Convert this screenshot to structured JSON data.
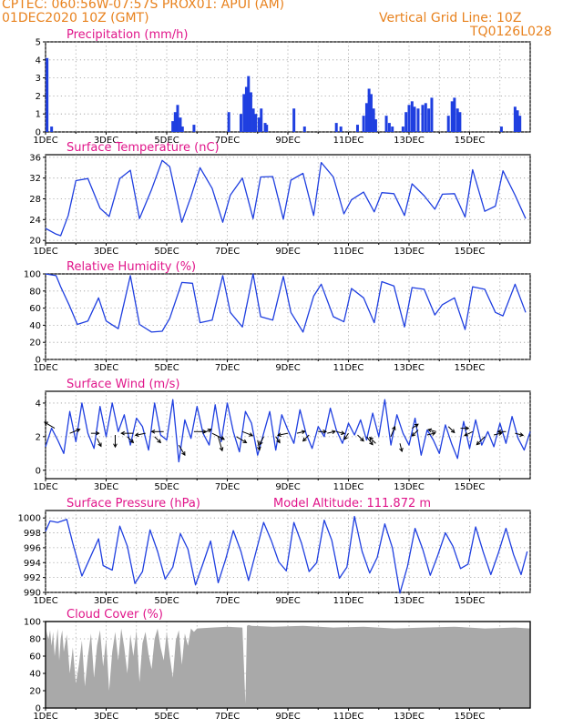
{
  "header": {
    "line1_left": "CPTEC:   060:56W-07:57S   PROX01: APUI (AM)",
    "line2_left": "01DEC2020 10Z (GMT)",
    "line2_right": "Vertical Grid Line: 10Z",
    "line3_right": "TQ0126L028"
  },
  "colors": {
    "header": "#e8821e",
    "title": "#e0158a",
    "series": "#1f3fe0",
    "cloud": "#a9a9a9"
  },
  "chart_data": [
    {
      "id": "precip",
      "type": "bar",
      "title": "Precipitation (mm/h)",
      "ylim": [
        0,
        5
      ],
      "yticks": [
        0,
        1,
        2,
        3,
        4,
        5
      ],
      "xticks": [
        "1DEC",
        "3DEC",
        "5DEC",
        "7DEC",
        "9DEC",
        "11DEC",
        "13DEC",
        "15DEC"
      ],
      "bars": [
        [
          0.05,
          4.1
        ],
        [
          0.2,
          0.3
        ],
        [
          4.2,
          0.6
        ],
        [
          4.28,
          1.1
        ],
        [
          4.36,
          1.5
        ],
        [
          4.45,
          0.8
        ],
        [
          4.52,
          0.3
        ],
        [
          4.9,
          0.4
        ],
        [
          6.05,
          1.1
        ],
        [
          6.45,
          1.0
        ],
        [
          6.55,
          2.1
        ],
        [
          6.63,
          2.5
        ],
        [
          6.7,
          3.1
        ],
        [
          6.78,
          2.2
        ],
        [
          6.86,
          1.3
        ],
        [
          6.94,
          1.0
        ],
        [
          7.05,
          0.8
        ],
        [
          7.12,
          1.3
        ],
        [
          7.25,
          0.5
        ],
        [
          7.3,
          0.4
        ],
        [
          8.2,
          1.3
        ],
        [
          8.55,
          0.3
        ],
        [
          9.6,
          0.5
        ],
        [
          9.75,
          0.3
        ],
        [
          10.3,
          0.4
        ],
        [
          10.5,
          0.9
        ],
        [
          10.6,
          1.6
        ],
        [
          10.68,
          2.4
        ],
        [
          10.75,
          2.1
        ],
        [
          10.83,
          1.3
        ],
        [
          10.9,
          0.7
        ],
        [
          11.25,
          0.9
        ],
        [
          11.35,
          0.5
        ],
        [
          11.45,
          0.3
        ],
        [
          11.8,
          0.3
        ],
        [
          11.9,
          1.1
        ],
        [
          12.0,
          1.5
        ],
        [
          12.1,
          1.7
        ],
        [
          12.18,
          1.4
        ],
        [
          12.3,
          1.3
        ],
        [
          12.45,
          1.5
        ],
        [
          12.55,
          1.6
        ],
        [
          12.65,
          1.3
        ],
        [
          12.75,
          1.9
        ],
        [
          13.3,
          0.9
        ],
        [
          13.42,
          1.7
        ],
        [
          13.5,
          1.9
        ],
        [
          13.6,
          1.3
        ],
        [
          13.68,
          1.1
        ],
        [
          15.05,
          0.3
        ],
        [
          15.5,
          1.4
        ],
        [
          15.58,
          1.2
        ],
        [
          15.66,
          0.9
        ]
      ]
    },
    {
      "id": "temp",
      "type": "line",
      "title": "Surface Temperature (nC)",
      "ylim": [
        19.5,
        36.5
      ],
      "yticks": [
        20,
        24,
        28,
        32,
        36
      ],
      "xticks": [
        "1DEC",
        "3DEC",
        "5DEC",
        "7DEC",
        "9DEC",
        "11DEC",
        "13DEC",
        "15DEC"
      ],
      "x": [
        0.0,
        0.35,
        0.5,
        0.75,
        1.0,
        1.4,
        1.8,
        2.1,
        2.45,
        2.8,
        3.1,
        3.5,
        3.85,
        4.1,
        4.5,
        4.8,
        5.1,
        5.5,
        5.85,
        6.1,
        6.5,
        6.85,
        7.1,
        7.5,
        7.85,
        8.1,
        8.5,
        8.85,
        9.1,
        9.5,
        9.85,
        10.1,
        10.5,
        10.85,
        11.1,
        11.5,
        11.85,
        12.1,
        12.5,
        12.85,
        13.1,
        13.5,
        13.85,
        14.1,
        14.5,
        14.85,
        15.1,
        15.5,
        15.85
      ],
      "y": [
        22.3,
        21.2,
        20.9,
        24.8,
        31.5,
        31.9,
        26.2,
        24.6,
        31.9,
        33.5,
        24.2,
        29.8,
        35.4,
        34.2,
        23.5,
        28.4,
        34.0,
        30.0,
        23.5,
        28.7,
        32.0,
        24.2,
        32.2,
        32.3,
        24.1,
        31.6,
        32.9,
        24.8,
        35.0,
        32.2,
        25.1,
        27.8,
        29.3,
        25.5,
        29.2,
        29.0,
        24.8,
        30.9,
        28.6,
        26.0,
        28.9,
        29.0,
        24.5,
        33.6,
        25.6,
        26.6,
        33.4,
        28.7,
        24.2
      ]
    },
    {
      "id": "rh",
      "type": "line",
      "title": "Relative Humidity (%)",
      "ylim": [
        0,
        100
      ],
      "yticks": [
        0,
        20,
        40,
        60,
        80,
        100
      ],
      "xticks": [
        "1DEC",
        "3DEC",
        "5DEC",
        "7DEC",
        "9DEC",
        "11DEC",
        "13DEC",
        "15DEC"
      ],
      "x": [
        0.0,
        0.35,
        0.5,
        0.8,
        1.05,
        1.4,
        1.75,
        2.0,
        2.4,
        2.8,
        3.1,
        3.5,
        3.85,
        4.1,
        4.5,
        4.85,
        5.1,
        5.5,
        5.85,
        6.1,
        6.5,
        6.85,
        7.1,
        7.5,
        7.85,
        8.1,
        8.5,
        8.85,
        9.1,
        9.5,
        9.85,
        10.1,
        10.5,
        10.85,
        11.1,
        11.5,
        11.85,
        12.1,
        12.5,
        12.85,
        13.1,
        13.5,
        13.85,
        14.1,
        14.5,
        14.85,
        15.1,
        15.5,
        15.85
      ],
      "y": [
        100,
        98,
        85,
        62,
        41,
        45,
        72,
        45,
        36,
        98,
        41,
        32,
        33,
        48,
        90,
        89,
        43,
        46,
        98,
        55,
        38,
        100,
        50,
        46,
        97,
        55,
        32,
        74,
        88,
        50,
        44,
        83,
        72,
        43,
        91,
        86,
        38,
        84,
        82,
        52,
        64,
        72,
        35,
        85,
        82,
        55,
        51,
        88,
        55
      ]
    },
    {
      "id": "wind",
      "type": "line",
      "title": "Surface Wind (m/s)",
      "ylim": [
        -0.5,
        4.7
      ],
      "yticks": [
        0,
        2,
        4
      ],
      "xticks": [
        "1DEC",
        "3DEC",
        "5DEC",
        "7DEC",
        "9DEC",
        "11DEC",
        "13DEC",
        "15DEC"
      ],
      "x": [
        0.0,
        0.2,
        0.4,
        0.6,
        0.8,
        1.0,
        1.2,
        1.4,
        1.6,
        1.8,
        2.0,
        2.2,
        2.4,
        2.6,
        2.8,
        3.0,
        3.2,
        3.4,
        3.6,
        3.8,
        4.0,
        4.2,
        4.4,
        4.6,
        4.8,
        5.0,
        5.2,
        5.4,
        5.6,
        5.8,
        6.0,
        6.2,
        6.4,
        6.6,
        6.8,
        7.0,
        7.2,
        7.4,
        7.6,
        7.8,
        8.0,
        8.2,
        8.4,
        8.6,
        8.8,
        9.0,
        9.2,
        9.4,
        9.6,
        9.8,
        10.0,
        10.2,
        10.4,
        10.6,
        10.8,
        11.0,
        11.2,
        11.4,
        11.6,
        11.8,
        12.0,
        12.2,
        12.4,
        12.6,
        12.8,
        13.0,
        13.2,
        13.4,
        13.6,
        13.8,
        14.0,
        14.2,
        14.4,
        14.6,
        14.8,
        15.0,
        15.2,
        15.4,
        15.6,
        15.8,
        16.0
      ],
      "y": [
        1.4,
        2.5,
        1.8,
        1.0,
        3.5,
        1.7,
        4.0,
        2.2,
        1.3,
        3.8,
        2.0,
        4.0,
        2.3,
        3.3,
        1.5,
        3.1,
        2.6,
        1.2,
        4.0,
        2.1,
        1.8,
        4.2,
        0.5,
        3.0,
        1.9,
        3.8,
        2.2,
        1.5,
        3.9,
        1.7,
        4.0,
        2.3,
        1.1,
        3.5,
        2.8,
        0.9,
        2.2,
        3.5,
        1.2,
        3.3,
        2.4,
        1.6,
        3.6,
        2.2,
        1.3,
        2.6,
        2.0,
        3.7,
        2.4,
        1.6,
        2.8,
        2.1,
        3.0,
        1.8,
        3.4,
        2.0,
        4.2,
        1.5,
        3.3,
        2.2,
        1.5,
        3.1,
        0.9,
        2.4,
        1.8,
        1.0,
        2.7,
        1.6,
        0.7,
        2.9,
        1.3,
        3.0,
        1.5,
        2.3,
        1.4,
        2.8,
        1.6,
        3.2,
        1.9,
        1.2,
        2.3
      ],
      "arrows": [
        [
          0.3,
          2.5,
          -0.5,
          0.3
        ],
        [
          0.8,
          2.2,
          0.5,
          0.2
        ],
        [
          1.5,
          2.2,
          0.4,
          0.0
        ],
        [
          1.7,
          1.9,
          0.2,
          -0.4
        ],
        [
          2.3,
          2.1,
          0.0,
          -0.6
        ],
        [
          2.7,
          2.0,
          0.3,
          -0.3
        ],
        [
          2.9,
          2.2,
          -0.6,
          0.0
        ],
        [
          3.3,
          2.2,
          -0.5,
          -0.1
        ],
        [
          3.6,
          2.0,
          0.3,
          -0.3
        ],
        [
          3.9,
          2.3,
          -0.6,
          0.0
        ],
        [
          4.4,
          1.5,
          0.3,
          -0.5
        ],
        [
          4.9,
          2.3,
          0.6,
          0.0
        ],
        [
          5.2,
          2.2,
          0.4,
          0.2
        ],
        [
          5.5,
          2.2,
          0.6,
          -0.3
        ],
        [
          5.7,
          2.0,
          0.2,
          -0.7
        ],
        [
          6.3,
          2.0,
          0.5,
          -0.3
        ],
        [
          6.5,
          2.3,
          0.5,
          -0.2
        ],
        [
          7.0,
          1.8,
          0.1,
          -0.5
        ],
        [
          7.2,
          2.0,
          -0.2,
          -0.4
        ],
        [
          7.6,
          2.0,
          0.2,
          -0.3
        ],
        [
          8.0,
          2.2,
          -0.5,
          -0.1
        ],
        [
          8.3,
          2.2,
          0.4,
          0.1
        ],
        [
          8.7,
          2.1,
          -0.3,
          -0.3
        ],
        [
          9.0,
          2.3,
          0.4,
          0.0
        ],
        [
          9.3,
          2.2,
          0.4,
          0.1
        ],
        [
          9.6,
          2.3,
          0.4,
          -0.1
        ],
        [
          10.0,
          2.2,
          -0.2,
          -0.3
        ],
        [
          10.3,
          2.1,
          0.3,
          -0.3
        ],
        [
          10.6,
          2.0,
          0.3,
          -0.4
        ],
        [
          10.9,
          1.6,
          -0.3,
          0.3
        ],
        [
          11.4,
          2.0,
          0.2,
          0.5
        ],
        [
          11.7,
          1.6,
          0.1,
          -0.4
        ],
        [
          12.1,
          2.5,
          0.3,
          0.2
        ],
        [
          12.3,
          2.4,
          -0.3,
          -0.3
        ],
        [
          12.6,
          2.1,
          0.4,
          0.1
        ],
        [
          12.9,
          2.3,
          -0.4,
          0.1
        ],
        [
          13.3,
          2.6,
          0.3,
          -0.3
        ],
        [
          13.7,
          2.5,
          0.4,
          0.0
        ],
        [
          14.1,
          2.3,
          -0.4,
          -0.2
        ],
        [
          14.5,
          2.0,
          -0.4,
          -0.4
        ],
        [
          14.8,
          2.1,
          0.4,
          0.1
        ],
        [
          15.2,
          2.3,
          -0.4,
          0.0
        ],
        [
          15.5,
          2.2,
          0.4,
          -0.1
        ]
      ]
    },
    {
      "id": "press",
      "type": "line",
      "title": "Surface Pressure (hPa)",
      "ylim": [
        990,
        1001
      ],
      "yticks": [
        990,
        992,
        994,
        996,
        998,
        1000
      ],
      "xticks": [
        "1DEC",
        "3DEC",
        "5DEC",
        "7DEC",
        "9DEC",
        "11DEC",
        "13DEC",
        "15DEC"
      ],
      "subtitle": "Model Altitude: 111.872 m",
      "x": [
        0.0,
        0.15,
        0.4,
        0.7,
        0.9,
        1.2,
        1.4,
        1.75,
        1.9,
        2.2,
        2.45,
        2.7,
        2.95,
        3.2,
        3.45,
        3.7,
        3.95,
        4.2,
        4.45,
        4.7,
        4.95,
        5.2,
        5.45,
        5.7,
        5.95,
        6.2,
        6.45,
        6.7,
        6.95,
        7.2,
        7.45,
        7.7,
        7.95,
        8.2,
        8.45,
        8.7,
        8.95,
        9.2,
        9.45,
        9.7,
        9.95,
        10.2,
        10.45,
        10.7,
        10.95,
        11.2,
        11.45,
        11.7,
        11.95,
        12.2,
        12.45,
        12.7,
        12.95,
        13.2,
        13.45,
        13.7,
        13.95,
        14.2,
        14.45,
        14.7,
        14.95,
        15.2,
        15.45,
        15.7,
        15.9
      ],
      "y": [
        998.2,
        999.6,
        999.4,
        999.8,
        996.6,
        992.2,
        994.0,
        997.2,
        993.6,
        993.0,
        998.9,
        996.2,
        991.2,
        992.8,
        998.4,
        995.5,
        991.8,
        993.4,
        997.9,
        995.8,
        991.0,
        993.9,
        996.9,
        991.3,
        994.5,
        998.3,
        995.5,
        991.6,
        995.5,
        999.4,
        997.0,
        994.1,
        992.9,
        999.4,
        996.6,
        992.8,
        994.0,
        999.7,
        997.0,
        991.9,
        993.4,
        1000.2,
        995.5,
        992.6,
        994.7,
        999.2,
        996.0,
        989.9,
        993.5,
        998.6,
        995.8,
        992.3,
        995.0,
        998.0,
        996.2,
        993.2,
        993.8,
        998.8,
        995.4,
        992.4,
        995.3,
        998.6,
        995.1,
        992.4,
        995.5
      ]
    },
    {
      "id": "cloud",
      "type": "area",
      "title": "Cloud Cover (%)",
      "ylim": [
        0,
        100
      ],
      "yticks": [
        0,
        20,
        40,
        60,
        80,
        100
      ],
      "xticks": [
        "1DEC",
        "3DEC",
        "5DEC",
        "7DEC",
        "9DEC",
        "11DEC",
        "13DEC",
        "15DEC"
      ],
      "x": [
        0.0,
        0.05,
        0.1,
        0.15,
        0.2,
        0.25,
        0.3,
        0.35,
        0.4,
        0.45,
        0.5,
        0.55,
        0.6,
        0.7,
        0.8,
        0.9,
        1.0,
        1.1,
        1.2,
        1.3,
        1.4,
        1.5,
        1.6,
        1.7,
        1.8,
        1.9,
        2.0,
        2.1,
        2.2,
        2.3,
        2.4,
        2.5,
        2.6,
        2.7,
        2.8,
        2.9,
        3.0,
        3.1,
        3.2,
        3.3,
        3.4,
        3.5,
        3.6,
        3.7,
        3.8,
        3.9,
        4.0,
        4.1,
        4.2,
        4.3,
        4.4,
        4.5,
        4.6,
        4.7,
        4.8,
        4.9,
        5.0,
        5.5,
        6.0,
        6.5,
        6.6,
        6.65,
        6.7,
        6.8,
        7.5,
        8.5,
        9.5,
        10.5,
        11.5,
        12.5,
        13.5,
        14.5,
        15.5,
        16.0
      ],
      "y": [
        95,
        85,
        80,
        90,
        72,
        88,
        60,
        75,
        92,
        55,
        80,
        90,
        65,
        85,
        40,
        70,
        28,
        50,
        78,
        25,
        60,
        86,
        35,
        72,
        90,
        48,
        80,
        20,
        65,
        88,
        55,
        92,
        70,
        40,
        85,
        60,
        90,
        30,
        75,
        88,
        62,
        45,
        80,
        92,
        70,
        55,
        88,
        60,
        35,
        78,
        90,
        50,
        86,
        72,
        92,
        88,
        92,
        93,
        94,
        93,
        5,
        95,
        96,
        95,
        94,
        95,
        93,
        94,
        92,
        93,
        94,
        92,
        93,
        92
      ]
    }
  ]
}
